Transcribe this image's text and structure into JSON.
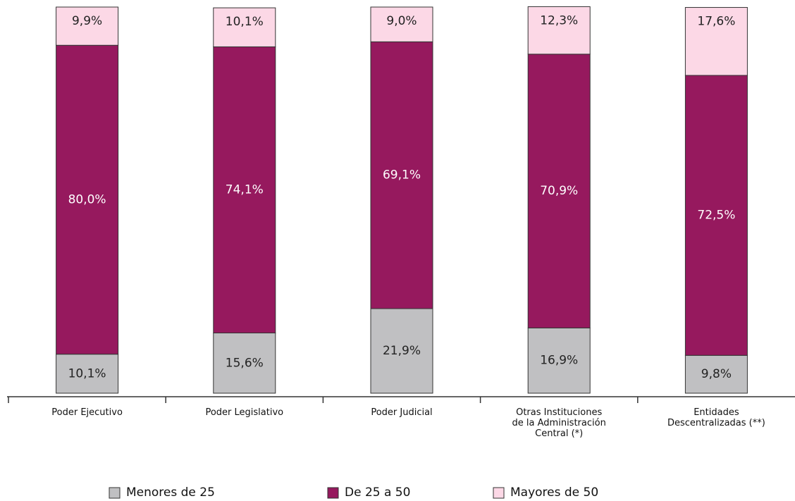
{
  "chart_data": {
    "type": "stacked_bar",
    "categories": [
      "Poder Ejecutivo",
      "Poder Legislativo",
      "Poder Judicial",
      "Otras Instituciones\nde la Administración\nCentral (*)",
      "Entidades\nDescentralizadas (**)"
    ],
    "ylim": [
      0,
      100
    ],
    "legend": "bottom",
    "series": [
      {
        "name": "Menores de 25",
        "color": "#c0c0c2",
        "label_color": "#222222",
        "values": [
          10.1,
          15.6,
          21.9,
          16.9,
          9.8
        ],
        "value_labels": [
          "10,1%",
          "15,6%",
          "21,9%",
          "16,9%",
          "9,8%"
        ]
      },
      {
        "name": "De 25 a 50",
        "color": "#96195e",
        "label_color": "#ffffff",
        "values": [
          80.0,
          74.1,
          69.1,
          70.9,
          72.5
        ],
        "value_labels": [
          "80,0%",
          "74,1%",
          "69,1%",
          "70,9%",
          "72,5%"
        ]
      },
      {
        "name": "Mayores de 50",
        "color": "#fcd8e6",
        "label_color": "#222222",
        "values": [
          9.9,
          10.1,
          9.0,
          12.3,
          17.6
        ],
        "value_labels": [
          "9,9%",
          "10,1%",
          "9,0%",
          "12,3%",
          "17,6%"
        ]
      }
    ]
  }
}
